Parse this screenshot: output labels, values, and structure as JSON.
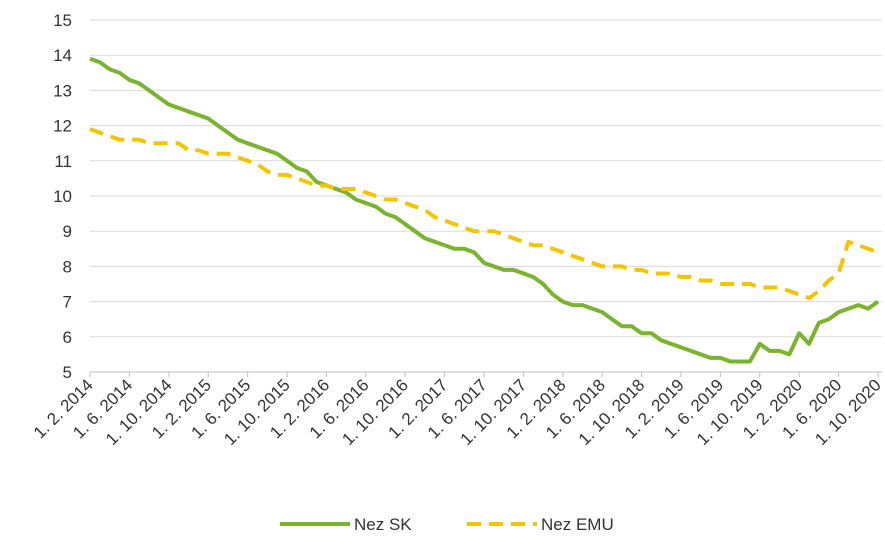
{
  "chart_data": {
    "type": "line",
    "categories": [
      "1. 2. 2014",
      null,
      null,
      null,
      "1. 6. 2014",
      null,
      null,
      null,
      "1. 10. 2014",
      null,
      null,
      null,
      "1. 2. 2015",
      null,
      null,
      null,
      "1. 6. 2015",
      null,
      null,
      null,
      "1. 10. 2015",
      null,
      null,
      null,
      "1. 2. 2016",
      null,
      null,
      null,
      "1. 6. 2016",
      null,
      null,
      null,
      "1. 10. 2016",
      null,
      null,
      null,
      "1. 2. 2017",
      null,
      null,
      null,
      "1. 6. 2017",
      null,
      null,
      null,
      "1. 10. 2017",
      null,
      null,
      null,
      "1. 2. 2018",
      null,
      null,
      null,
      "1. 6. 2018",
      null,
      null,
      null,
      "1. 10. 2018",
      null,
      null,
      null,
      "1. 2. 2019",
      null,
      null,
      null,
      "1. 6. 2019",
      null,
      null,
      null,
      "1. 10. 2019",
      null,
      null,
      null,
      "1. 2. 2020",
      null,
      null,
      null,
      "1. 6. 2020",
      null,
      null,
      null,
      "1. 10. 2020"
    ],
    "series": [
      {
        "name": "Nez SK",
        "color": "#7ab32e",
        "dashed": false,
        "values": [
          13.9,
          13.8,
          13.6,
          13.5,
          13.3,
          13.2,
          13.0,
          12.8,
          12.6,
          12.5,
          12.4,
          12.3,
          12.2,
          12.0,
          11.8,
          11.6,
          11.5,
          11.4,
          11.3,
          11.2,
          11.0,
          10.8,
          10.7,
          10.4,
          10.3,
          10.2,
          10.1,
          9.9,
          9.8,
          9.7,
          9.5,
          9.4,
          9.2,
          9.0,
          8.8,
          8.7,
          8.6,
          8.5,
          8.5,
          8.4,
          8.1,
          8.0,
          7.9,
          7.9,
          7.8,
          7.7,
          7.5,
          7.2,
          7.0,
          6.9,
          6.9,
          6.8,
          6.7,
          6.5,
          6.3,
          6.3,
          6.1,
          6.1,
          5.9,
          5.8,
          5.7,
          5.6,
          5.5,
          5.4,
          5.4,
          5.3,
          5.3,
          5.3,
          5.8,
          5.6,
          5.6,
          5.5,
          6.1,
          5.8,
          6.4,
          6.5,
          6.7,
          6.8,
          6.9,
          6.8,
          7.0
        ]
      },
      {
        "name": "Nez EMU",
        "color": "#f5c400",
        "dashed": true,
        "values": [
          11.9,
          11.8,
          11.7,
          11.6,
          11.6,
          11.6,
          11.5,
          11.5,
          11.5,
          11.5,
          11.3,
          11.3,
          11.2,
          11.2,
          11.2,
          11.1,
          11.0,
          10.9,
          10.7,
          10.6,
          10.6,
          10.5,
          10.4,
          10.3,
          10.3,
          10.2,
          10.2,
          10.2,
          10.1,
          10.0,
          9.9,
          9.9,
          9.8,
          9.7,
          9.6,
          9.4,
          9.3,
          9.2,
          9.1,
          9.0,
          9.0,
          9.0,
          8.9,
          8.8,
          8.7,
          8.6,
          8.6,
          8.5,
          8.4,
          8.3,
          8.2,
          8.1,
          8.0,
          8.0,
          8.0,
          7.9,
          7.9,
          7.8,
          7.8,
          7.8,
          7.7,
          7.7,
          7.6,
          7.6,
          7.5,
          7.5,
          7.5,
          7.5,
          7.4,
          7.4,
          7.4,
          7.3,
          7.2,
          7.1,
          7.3,
          7.6,
          7.8,
          8.7,
          8.6,
          8.5,
          8.4
        ]
      }
    ],
    "ylim": [
      5,
      15
    ],
    "yticks": [
      5,
      6,
      7,
      8,
      9,
      10,
      11,
      12,
      13,
      14,
      15
    ],
    "grid": true,
    "legend": "bottom"
  }
}
